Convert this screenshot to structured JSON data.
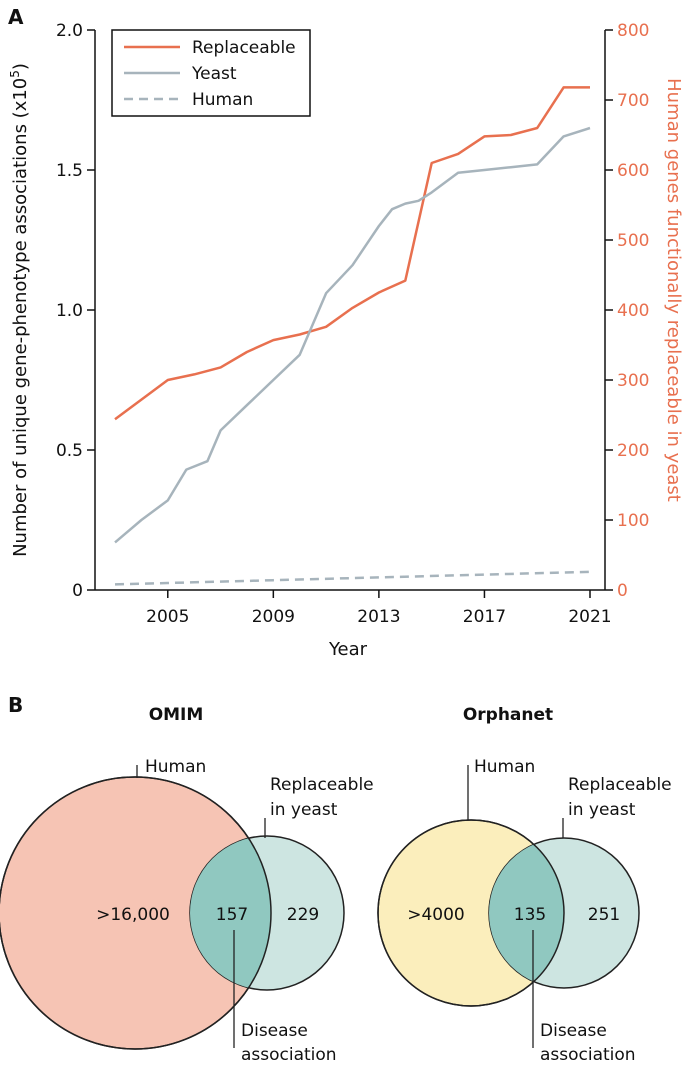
{
  "panel_a": {
    "label": "A",
    "chart_data": {
      "type": "line",
      "x_label": "Year",
      "y_label": "Number of unique gene-phenotype associations (x10",
      "y_label_exp": "5",
      "y_label_close": ")",
      "y2_label": "Human genes functionally replaceable in yeast",
      "xlim": [
        2003,
        2021
      ],
      "ylim": [
        0,
        2.0
      ],
      "y2lim": [
        0,
        800
      ],
      "x_ticks": [
        2005,
        2009,
        2013,
        2017,
        2021
      ],
      "x_tick_labels": [
        "2005",
        "2009",
        "2013",
        "2017",
        "2021"
      ],
      "y_ticks": [
        0,
        0.5,
        1.0,
        1.5,
        2.0
      ],
      "y_tick_labels": [
        "0",
        "0.5",
        "1.0",
        "1.5",
        "2.0"
      ],
      "y2_ticks": [
        0,
        100,
        200,
        300,
        400,
        500,
        600,
        700,
        800
      ],
      "y2_tick_labels": [
        "0",
        "100",
        "200",
        "300",
        "400",
        "500",
        "600",
        "700",
        "800"
      ],
      "legend_position": "top-left",
      "series": [
        {
          "name": "Replaceable",
          "axis": "right",
          "color": "#e8704f",
          "dash": "solid",
          "x": [
            2003,
            2004,
            2005,
            2006,
            2007,
            2008,
            2009,
            2010,
            2011,
            2012,
            2013,
            2014,
            2015,
            2016,
            2017,
            2018,
            2019,
            2020,
            2021
          ],
          "values": [
            244,
            272,
            300,
            308,
            318,
            340,
            357,
            365,
            376,
            403,
            425,
            442,
            610,
            623,
            648,
            650,
            660,
            718,
            718
          ]
        },
        {
          "name": "Yeast",
          "axis": "left",
          "color": "#a7b4bc",
          "dash": "solid",
          "x": [
            2003,
            2004,
            2005,
            2005.7,
            2006.5,
            2007,
            2008,
            2009,
            2010,
            2011,
            2012,
            2012.5,
            2013,
            2013.5,
            2014,
            2014.5,
            2015,
            2016,
            2017,
            2018,
            2019,
            2020,
            2021
          ],
          "values": [
            0.17,
            0.25,
            0.32,
            0.43,
            0.46,
            0.57,
            0.66,
            0.75,
            0.84,
            1.06,
            1.16,
            1.23,
            1.3,
            1.36,
            1.38,
            1.39,
            1.42,
            1.49,
            1.5,
            1.51,
            1.52,
            1.62,
            1.65
          ]
        },
        {
          "name": "Human",
          "axis": "left",
          "color": "#a7b4bc",
          "dash": "dashed",
          "x": [
            2003,
            2005,
            2009,
            2013,
            2017,
            2021
          ],
          "values": [
            0.02,
            0.025,
            0.035,
            0.045,
            0.055,
            0.065
          ]
        }
      ]
    }
  },
  "panel_b": {
    "label": "B",
    "venns": [
      {
        "title": "OMIM",
        "big_label": "Human",
        "big_value": ">16,000",
        "small_label_1": "Replaceable",
        "small_label_2": "in yeast",
        "overlap_value": "157",
        "small_value": "229",
        "bottom_label_1": "Disease",
        "bottom_label_2": "association",
        "big_color": "#f6c4b4",
        "small_color": "#cde5e1",
        "overlap_color": "#90c8c0"
      },
      {
        "title": "Orphanet",
        "big_label": "Human",
        "big_value": ">4000",
        "small_label_1": "Replaceable",
        "small_label_2": "in yeast",
        "overlap_value": "135",
        "small_value": "251",
        "bottom_label_1": "Disease",
        "bottom_label_2": "association",
        "big_color": "#fbeebc",
        "small_color": "#cde5e1",
        "overlap_color": "#90c8c0"
      }
    ]
  }
}
